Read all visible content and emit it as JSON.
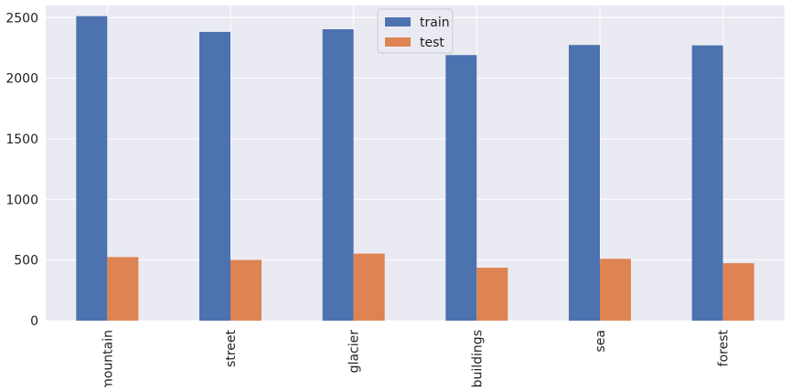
{
  "chart_data": {
    "type": "bar",
    "title": "",
    "xlabel": "",
    "ylabel": "",
    "categories": [
      "mountain",
      "street",
      "glacier",
      "buildings",
      "sea",
      "forest"
    ],
    "series": [
      {
        "name": "train",
        "values": [
          2512,
          2382,
          2404,
          2191,
          2274,
          2271
        ],
        "color": "#4c72b0"
      },
      {
        "name": "test",
        "values": [
          525,
          501,
          553,
          437,
          510,
          474
        ],
        "color": "#dd8452"
      }
    ],
    "ylim": [
      0,
      2600
    ],
    "yticks": [
      0,
      500,
      1000,
      1500,
      2000,
      2500
    ],
    "grid": true,
    "legend_position": "top-center",
    "background_color": "#eaeaf2"
  }
}
